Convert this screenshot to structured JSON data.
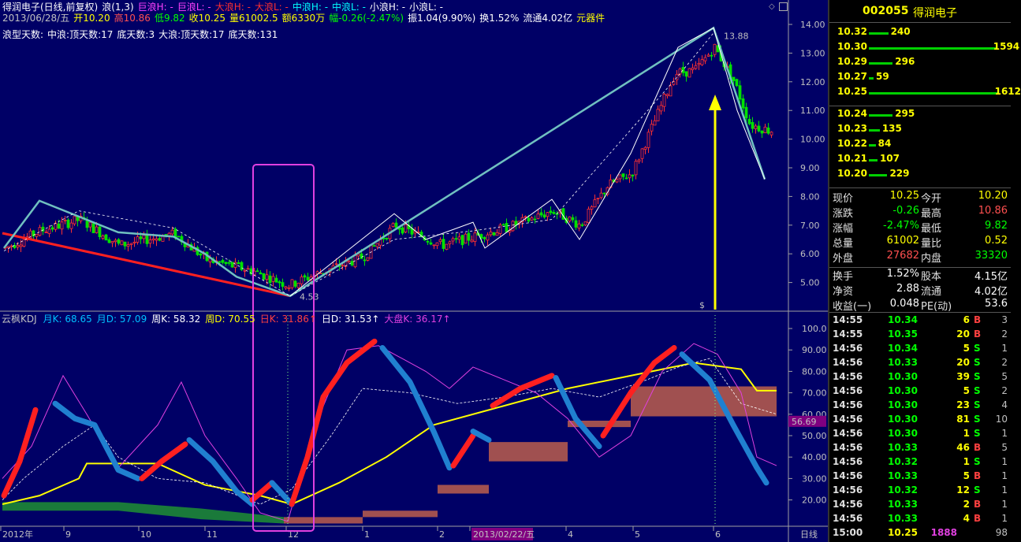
{
  "window": {
    "title": "得润电子(日线,前复权)",
    "wave_label": "浪(1,3)"
  },
  "header": {
    "wave_items": [
      {
        "text": "巨浪H: -",
        "color": "#ff40ff"
      },
      {
        "text": "巨浪L: -",
        "color": "#ff40ff"
      },
      {
        "text": "大浪H: -",
        "color": "#ff3030"
      },
      {
        "text": "大浪L: -",
        "color": "#ff3030"
      },
      {
        "text": "中浪H: -",
        "color": "#00ffff"
      },
      {
        "text": "中浪L: -",
        "color": "#00ffff"
      },
      {
        "text": "小浪H: -",
        "color": "#ffffff"
      },
      {
        "text": "小浪L: -",
        "color": "#ffffff"
      }
    ],
    "quote_line": [
      {
        "text": "2013/06/28/五",
        "color": "#c0c0c0"
      },
      {
        "text": "开10.20",
        "color": "#ffff00"
      },
      {
        "text": "高10.86",
        "color": "#ff5050"
      },
      {
        "text": "低9.82",
        "color": "#00ff00"
      },
      {
        "text": "收10.25",
        "color": "#ffff00"
      },
      {
        "text": "量61002.5",
        "color": "#ffff00"
      },
      {
        "text": "额6330万",
        "color": "#ffff00"
      },
      {
        "text": "幅-0.26(-2.47%)",
        "color": "#00ff00"
      },
      {
        "text": "振1.04(9.90%)",
        "color": "#ffffff"
      },
      {
        "text": "换1.52%",
        "color": "#ffffff"
      },
      {
        "text": "流通4.02亿",
        "color": "#ffffff"
      },
      {
        "text": "元器件",
        "color": "#ffff00"
      }
    ],
    "wave_days": [
      {
        "text": "浪型天数:",
        "color": "#ffffff"
      },
      {
        "text": "中浪:顶天数:17",
        "color": "#ffffff"
      },
      {
        "text": "底天数:3",
        "color": "#ffffff"
      },
      {
        "text": "大浪:顶天数:17",
        "color": "#ffffff"
      },
      {
        "text": "底天数:131",
        "color": "#ffffff"
      }
    ]
  },
  "price_chart": {
    "y_ticks": [
      "14.00",
      "13.00",
      "12.00",
      "11.00",
      "10.00",
      "9.00",
      "8.00",
      "7.00",
      "6.00",
      "5.00"
    ],
    "high_label": "13.88",
    "low_label": "4.53",
    "signal_marker": "$",
    "colors": {
      "up": "#ff3030",
      "down": "#00e000",
      "wave_main": "#70c0c0",
      "trend_red": "#ff2020",
      "arrow": "#ffff00",
      "highlight": "#e040e0"
    }
  },
  "indicator": {
    "labels": [
      {
        "text": "云枫KDJ",
        "color": "#c0c0c0"
      },
      {
        "text": "月K: 68.65",
        "color": "#00c0ff"
      },
      {
        "text": "月D: 57.09",
        "color": "#00c0ff"
      },
      {
        "text": "周K: 58.32",
        "color": "#ffffff"
      },
      {
        "text": "周D: 70.55",
        "color": "#ffff00"
      },
      {
        "text": "日K: 31.86↑",
        "color": "#ff4040"
      },
      {
        "text": "日D: 31.53↑",
        "color": "#ffffff"
      },
      {
        "text": "大盘K: 36.17↑",
        "color": "#e040e0"
      }
    ],
    "y_ticks": [
      "100.0",
      "90.00",
      "80.00",
      "70.00",
      "60.00",
      "50.00",
      "40.00",
      "30.00",
      "20.00"
    ],
    "current_value": "56.69"
  },
  "x_axis": {
    "labels": [
      "2012年",
      "9",
      "10",
      "11",
      "12",
      "1",
      "2",
      "2013/02/22/五",
      "4",
      "5",
      "6"
    ],
    "period": "日线"
  },
  "stock": {
    "code": "002055",
    "name": "得润电子"
  },
  "order_book": {
    "asks": [
      {
        "price": "10.32",
        "vol": "240",
        "level": 240
      },
      {
        "price": "10.30",
        "vol": "1594",
        "level": 1594
      },
      {
        "price": "10.29",
        "vol": "296",
        "level": 296
      },
      {
        "price": "10.27",
        "vol": "59",
        "level": 59
      },
      {
        "price": "10.25",
        "vol": "1612",
        "level": 1612
      }
    ],
    "bids": [
      {
        "price": "10.24",
        "vol": "295",
        "level": 295
      },
      {
        "price": "10.23",
        "vol": "135",
        "level": 135
      },
      {
        "price": "10.22",
        "vol": "84",
        "level": 84
      },
      {
        "price": "10.21",
        "vol": "107",
        "level": 107
      },
      {
        "price": "10.20",
        "vol": "229",
        "level": 229
      }
    ]
  },
  "quote": [
    {
      "l1": "现价",
      "v1": "10.25",
      "c1": "#ffff00",
      "l2": "今开",
      "v2": "10.20",
      "c2": "#ffff00"
    },
    {
      "l1": "涨跌",
      "v1": "-0.26",
      "c1": "#00ff00",
      "l2": "最高",
      "v2": "10.86",
      "c2": "#ff5050"
    },
    {
      "l1": "涨幅",
      "v1": "-2.47%",
      "c1": "#00ff00",
      "l2": "最低",
      "v2": "9.82",
      "c2": "#00ff00"
    },
    {
      "l1": "总量",
      "v1": "61002",
      "c1": "#ffff00",
      "l2": "量比",
      "v2": "0.52",
      "c2": "#ffff00"
    },
    {
      "l1": "外盘",
      "v1": "27682",
      "c1": "#ff5050",
      "l2": "内盘",
      "v2": "33320",
      "c2": "#00ff00"
    }
  ],
  "quote2": [
    {
      "l1": "换手",
      "v1": "1.52%",
      "l2": "股本",
      "v2": "4.15亿"
    },
    {
      "l1": "净资",
      "v1": "2.88",
      "l2": "流通",
      "v2": "4.02亿"
    },
    {
      "l1": "收益(一)",
      "v1": "0.048",
      "l2": "PE(动)",
      "v2": "53.6"
    }
  ],
  "ticks": [
    {
      "time": "14:55",
      "price": "10.34",
      "vol": "6",
      "bs": "B",
      "n": "3"
    },
    {
      "time": "14:55",
      "price": "10.35",
      "vol": "20",
      "bs": "B",
      "n": "2"
    },
    {
      "time": "14:56",
      "price": "10.34",
      "vol": "5",
      "bs": "S",
      "n": "1"
    },
    {
      "time": "14:56",
      "price": "10.33",
      "vol": "20",
      "bs": "S",
      "n": "2"
    },
    {
      "time": "14:56",
      "price": "10.30",
      "vol": "39",
      "bs": "S",
      "n": "5"
    },
    {
      "time": "14:56",
      "price": "10.30",
      "vol": "5",
      "bs": "S",
      "n": "2"
    },
    {
      "time": "14:56",
      "price": "10.30",
      "vol": "23",
      "bs": "S",
      "n": "4"
    },
    {
      "time": "14:56",
      "price": "10.30",
      "vol": "81",
      "bs": "S",
      "n": "10"
    },
    {
      "time": "14:56",
      "price": "10.30",
      "vol": "1",
      "bs": "S",
      "n": "1"
    },
    {
      "time": "14:56",
      "price": "10.33",
      "vol": "46",
      "bs": "B",
      "n": "5"
    },
    {
      "time": "14:56",
      "price": "10.32",
      "vol": "1",
      "bs": "S",
      "n": "1"
    },
    {
      "time": "14:56",
      "price": "10.33",
      "vol": "5",
      "bs": "B",
      "n": "1"
    },
    {
      "time": "14:56",
      "price": "10.32",
      "vol": "12",
      "bs": "S",
      "n": "1"
    },
    {
      "time": "14:56",
      "price": "10.33",
      "vol": "2",
      "bs": "B",
      "n": "1"
    },
    {
      "time": "14:56",
      "price": "10.33",
      "vol": "4",
      "bs": "B",
      "n": "1"
    },
    {
      "time": "15:00",
      "price": "10.25",
      "vol": "1888",
      "bs": "",
      "n": "98"
    }
  ]
}
